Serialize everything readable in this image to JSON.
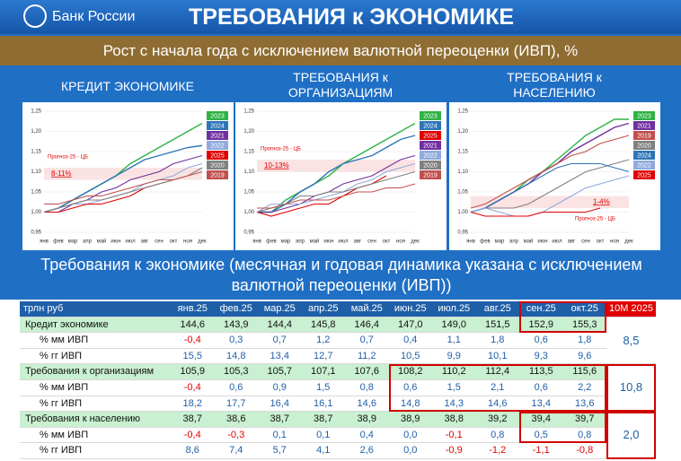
{
  "header": {
    "logo": "Банк России",
    "title": "ТРЕБОВАНИЯ к ЭКОНОМИКЕ"
  },
  "subtitle": "Рост с начала года с исключением валютной переоценки (ИВП), %",
  "chart_data": [
    {
      "type": "line",
      "title": "КРЕДИТ ЭКОНОМИКЕ",
      "annotation": "Прогноз-25 - ЦБ",
      "forecast": "8-11%",
      "categories": [
        "янв",
        "фев",
        "мар",
        "апр",
        "май",
        "июн",
        "июл",
        "авг",
        "сен",
        "окт",
        "ноя",
        "дек"
      ],
      "ylim": [
        0.95,
        1.25
      ],
      "yticks": [
        {
          "value": 0.95,
          "label": "0,95"
        },
        {
          "value": 1.0,
          "label": "1,00"
        },
        {
          "value": 1.05,
          "label": "1,05"
        },
        {
          "value": 1.1,
          "label": "1,10"
        },
        {
          "value": 1.15,
          "label": "1,15"
        },
        {
          "value": 1.2,
          "label": "1,20"
        },
        {
          "value": 1.25,
          "label": "1,25"
        }
      ],
      "series": [
        {
          "name": "2023",
          "color": "#2fb344",
          "values": [
            1.0,
            1.01,
            1.03,
            1.05,
            1.07,
            1.09,
            1.12,
            1.14,
            1.16,
            1.18,
            1.2,
            1.22
          ]
        },
        {
          "name": "2024",
          "color": "#2e75b6",
          "values": [
            1.0,
            1.01,
            1.03,
            1.05,
            1.07,
            1.09,
            1.11,
            1.13,
            1.14,
            1.15,
            1.16,
            1.165
          ]
        },
        {
          "name": "2021",
          "color": "#7030a0",
          "values": [
            1.0,
            1.0,
            1.02,
            1.03,
            1.05,
            1.06,
            1.08,
            1.09,
            1.1,
            1.12,
            1.13,
            1.14
          ]
        },
        {
          "name": "2022",
          "color": "#8faadc",
          "values": [
            1.0,
            1.01,
            1.02,
            1.02,
            1.03,
            1.04,
            1.05,
            1.07,
            1.08,
            1.09,
            1.11,
            1.12
          ]
        },
        {
          "name": "2025",
          "color": "#e00000",
          "values": [
            1.0,
            1.0,
            1.01,
            1.02,
            1.02,
            1.03,
            1.04,
            1.06,
            1.07,
            1.08,
            null,
            null
          ]
        },
        {
          "name": "2020",
          "color": "#808080",
          "values": [
            1.0,
            1.01,
            1.02,
            1.03,
            1.03,
            1.04,
            1.05,
            1.06,
            1.07,
            1.08,
            1.09,
            1.11
          ]
        },
        {
          "name": "2019",
          "color": "#c0504d",
          "values": [
            1.02,
            1.02,
            1.03,
            1.04,
            1.04,
            1.05,
            1.06,
            1.07,
            1.08,
            1.08,
            1.09,
            1.1
          ]
        }
      ]
    },
    {
      "type": "line",
      "title": "ТРЕБОВАНИЯ к ОРГАНИЗАЦИЯМ",
      "annotation": "Прогноз-25 - ЦБ",
      "forecast": "10-13%",
      "categories": [
        "янв",
        "фев",
        "мар",
        "апр",
        "май",
        "июн",
        "июл",
        "авг",
        "сен",
        "окт",
        "ноя",
        "дек"
      ],
      "ylim": [
        0.95,
        1.25
      ],
      "yticks": [
        {
          "value": 0.95,
          "label": "0,95"
        },
        {
          "value": 1.0,
          "label": "1,00"
        },
        {
          "value": 1.05,
          "label": "1,05"
        },
        {
          "value": 1.1,
          "label": "1,10"
        },
        {
          "value": 1.15,
          "label": "1,15"
        },
        {
          "value": 1.2,
          "label": "1,20"
        },
        {
          "value": 1.25,
          "label": "1,25"
        }
      ],
      "series": [
        {
          "name": "2023",
          "color": "#2fb344",
          "values": [
            1.0,
            1.0,
            1.03,
            1.05,
            1.07,
            1.09,
            1.12,
            1.14,
            1.16,
            1.18,
            1.2,
            1.22
          ]
        },
        {
          "name": "2024",
          "color": "#2e75b6",
          "values": [
            1.0,
            1.0,
            1.02,
            1.05,
            1.07,
            1.1,
            1.12,
            1.13,
            1.14,
            1.16,
            1.18,
            1.19
          ]
        },
        {
          "name": "2025",
          "color": "#e00000",
          "values": [
            1.0,
            0.99,
            1.0,
            1.01,
            1.02,
            1.02,
            1.04,
            1.06,
            1.07,
            1.09,
            null,
            null
          ]
        },
        {
          "name": "2021",
          "color": "#7030a0",
          "values": [
            1.0,
            1.0,
            1.01,
            1.02,
            1.04,
            1.05,
            1.07,
            1.08,
            1.09,
            1.11,
            1.13,
            1.14
          ]
        },
        {
          "name": "2022",
          "color": "#8faadc",
          "values": [
            1.0,
            1.02,
            1.02,
            1.02,
            1.03,
            1.04,
            1.05,
            1.07,
            1.08,
            1.1,
            1.11,
            1.12
          ]
        },
        {
          "name": "2020",
          "color": "#808080",
          "values": [
            1.0,
            1.01,
            1.02,
            1.04,
            1.04,
            1.05,
            1.05,
            1.06,
            1.07,
            1.08,
            1.09,
            1.1
          ]
        },
        {
          "name": "2019",
          "color": "#c0504d",
          "values": [
            1.01,
            1.01,
            1.02,
            1.03,
            1.03,
            1.03,
            1.04,
            1.05,
            1.05,
            1.06,
            1.06,
            1.07
          ]
        }
      ]
    },
    {
      "type": "line",
      "title": "ТРЕБОВАНИЯ к НАСЕЛЕНИЮ",
      "annotation": "Прогноз-25 - ЦБ",
      "forecast": "1-4%",
      "categories": [
        "янв",
        "фев",
        "мар",
        "апр",
        "май",
        "июн",
        "июл",
        "авг",
        "сен",
        "окт",
        "ноя",
        "дек"
      ],
      "ylim": [
        0.95,
        1.25
      ],
      "yticks": [
        {
          "value": 0.95,
          "label": "0,95"
        },
        {
          "value": 1.0,
          "label": "1,00"
        },
        {
          "value": 1.05,
          "label": "1,05"
        },
        {
          "value": 1.1,
          "label": "1,10"
        },
        {
          "value": 1.15,
          "label": "1,15"
        },
        {
          "value": 1.2,
          "label": "1,20"
        },
        {
          "value": 1.25,
          "label": "1,25"
        }
      ],
      "series": [
        {
          "name": "2023",
          "color": "#2fb344",
          "values": [
            1.0,
            1.01,
            1.03,
            1.05,
            1.08,
            1.1,
            1.13,
            1.16,
            1.19,
            1.21,
            1.23,
            1.23
          ]
        },
        {
          "name": "2021",
          "color": "#7030a0",
          "values": [
            1.0,
            1.01,
            1.03,
            1.05,
            1.07,
            1.1,
            1.12,
            1.15,
            1.17,
            1.19,
            1.21,
            1.22
          ]
        },
        {
          "name": "2019",
          "color": "#c0504d",
          "values": [
            1.01,
            1.02,
            1.04,
            1.06,
            1.08,
            1.1,
            1.12,
            1.14,
            1.15,
            1.17,
            1.18,
            1.19
          ]
        },
        {
          "name": "2020",
          "color": "#808080",
          "values": [
            1.0,
            1.01,
            1.01,
            1.01,
            1.02,
            1.04,
            1.06,
            1.08,
            1.1,
            1.11,
            1.12,
            1.13
          ]
        },
        {
          "name": "2024",
          "color": "#2e75b6",
          "values": [
            1.0,
            1.01,
            1.03,
            1.05,
            1.07,
            1.09,
            1.11,
            1.12,
            1.12,
            1.12,
            1.11,
            1.1
          ]
        },
        {
          "name": "2022",
          "color": "#8faadc",
          "values": [
            1.0,
            1.01,
            1.0,
            0.99,
            0.99,
            1.0,
            1.02,
            1.04,
            1.06,
            1.07,
            1.08,
            1.09
          ]
        },
        {
          "name": "2025",
          "color": "#e00000",
          "values": [
            1.0,
            0.99,
            0.99,
            0.99,
            0.99,
            1.0,
            1.0,
            1.0,
            1.0,
            1.01,
            null,
            null
          ]
        }
      ]
    }
  ],
  "table_title": "Требования к экономике (месячная и годовая динамика указана с исключением валютной переоценки (ИВП))",
  "table": {
    "header": [
      "трлн руб",
      "янв.25",
      "фев.25",
      "мар.25",
      "апр.25",
      "май.25",
      "июн.25",
      "июл.25",
      "авг.25",
      "сен.25",
      "окт.25",
      "10М 2025"
    ],
    "rows": [
      [
        "Кредит экономике",
        "144,6",
        "143,9",
        "144,4",
        "145,8",
        "146,4",
        "147,0",
        "149,0",
        "151,5",
        "152,9",
        "155,3"
      ],
      [
        "% мм ИВП",
        "-0,4",
        "0,3",
        "0,7",
        "1,2",
        "0,7",
        "0,4",
        "1,1",
        "1,8",
        "0,6",
        "1,8"
      ],
      [
        "% гг ИВП",
        "15,5",
        "14,8",
        "13,4",
        "12,7",
        "11,2",
        "10,5",
        "9,9",
        "10,1",
        "9,3",
        "9,6"
      ],
      [
        "Требования к организациям",
        "105,9",
        "105,3",
        "105,7",
        "107,1",
        "107,6",
        "108,2",
        "110,2",
        "112,4",
        "113,5",
        "115,6"
      ],
      [
        "% мм ИВП",
        "-0,4",
        "0,6",
        "0,9",
        "1,5",
        "0,8",
        "0,6",
        "1,5",
        "2,1",
        "0,6",
        "2,2"
      ],
      [
        "% гг ИВП",
        "18,2",
        "17,7",
        "16,4",
        "16,1",
        "14,6",
        "14,8",
        "14,3",
        "14,6",
        "13,4",
        "13,6"
      ],
      [
        "Требования к населению",
        "38,7",
        "38,6",
        "38,7",
        "38,7",
        "38,9",
        "38,9",
        "38,8",
        "39,2",
        "39,4",
        "39,7"
      ],
      [
        "% мм ИВП",
        "-0,4",
        "-0,3",
        "0,1",
        "0,1",
        "0,4",
        "0,0",
        "-0,1",
        "0,8",
        "0,5",
        "0,8"
      ],
      [
        "% гг ИВП",
        "8,6",
        "7,4",
        "5,7",
        "4,1",
        "2,6",
        "0,0",
        "-0,9",
        "-1,2",
        "-1,1",
        "-0,8"
      ]
    ],
    "totals": [
      "8,5",
      "10,8",
      "2,0"
    ]
  }
}
